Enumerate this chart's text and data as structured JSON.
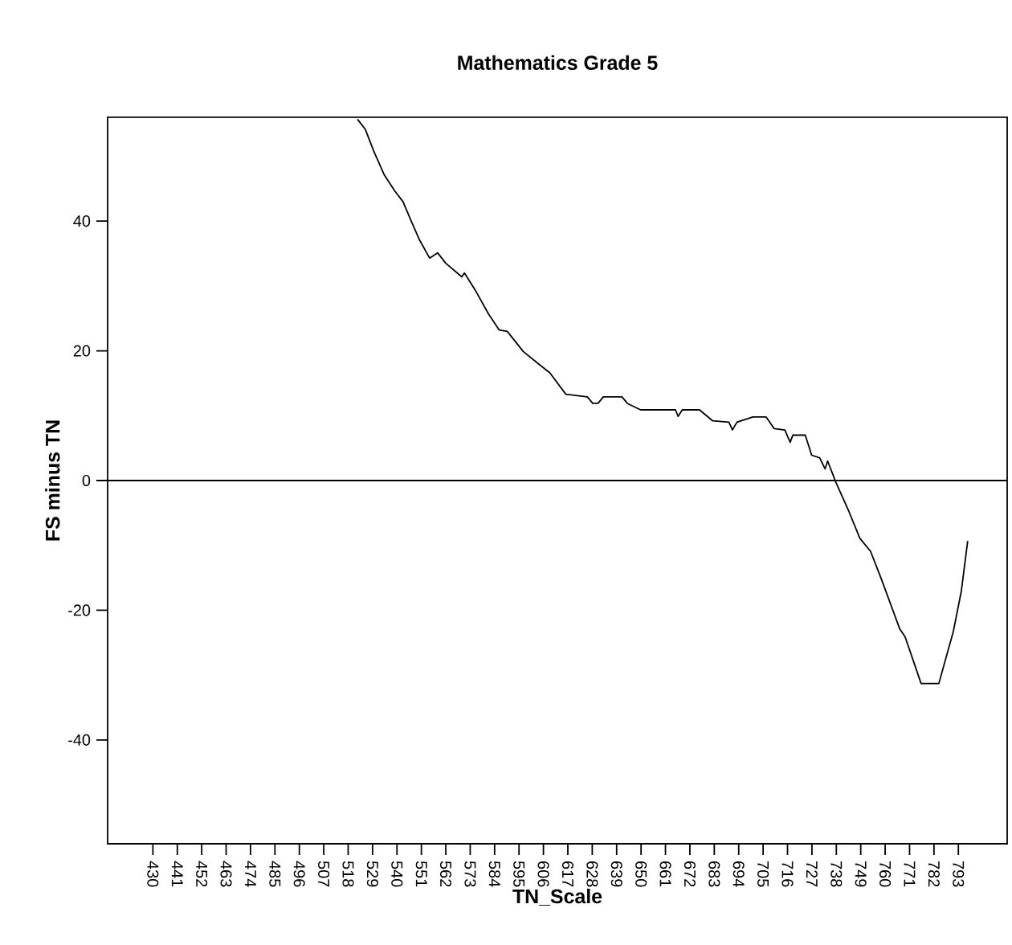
{
  "chart_data": {
    "type": "line",
    "title": "Mathematics Grade 5",
    "xlabel": "TN_Scale",
    "ylabel": "FS minus TN",
    "xlim": [
      409.6,
      815
    ],
    "ylim": [
      -56,
      56
    ],
    "xticks": [
      430,
      441,
      452,
      463,
      474,
      485,
      496,
      507,
      518,
      529,
      540,
      551,
      562,
      573,
      584,
      595,
      606,
      617,
      628,
      639,
      650,
      661,
      672,
      683,
      694,
      705,
      716,
      727,
      738,
      749,
      760,
      771,
      782,
      793
    ],
    "yticks": [
      -40,
      -20,
      0,
      20,
      40
    ],
    "grid": false,
    "marker": "none",
    "line_style": "solid",
    "ref_lines": [
      {
        "axis": "y",
        "value": 0,
        "color": "#000000"
      }
    ],
    "series": [
      {
        "color": "#000000",
        "x": [
          522.2,
          525.8,
          529.5,
          534.3,
          539.1,
          542.7,
          546.3,
          550.0,
          554.7,
          558.3,
          562.0,
          569.2,
          570.4,
          575.2,
          581.2,
          586.1,
          589.7,
          596.9,
          604.1,
          608.9,
          616.1,
          625.8,
          628.2,
          630.6,
          633.0,
          641.4,
          643.8,
          649.8,
          665.5,
          666.7,
          668.6,
          676.3,
          682.3,
          689.6,
          691.2,
          693.2,
          700.4,
          706.4,
          710.0,
          714.8,
          717.2,
          718.4,
          724.0,
          726.9,
          730.5,
          732.9,
          734.1,
          737.7,
          743.7,
          748.6,
          753.4,
          758.2,
          766.6,
          769.0,
          776.2,
          784.2,
          790.7,
          794.3,
          797.2
        ],
        "values": [
          55.7,
          54.1,
          50.8,
          47.1,
          44.6,
          43.0,
          40.1,
          37.2,
          34.3,
          35.1,
          33.5,
          31.4,
          32.0,
          29.4,
          25.7,
          23.2,
          23.0,
          19.9,
          17.9,
          16.6,
          13.3,
          12.9,
          11.9,
          11.9,
          12.9,
          12.9,
          11.9,
          10.9,
          10.9,
          9.9,
          10.9,
          10.9,
          9.2,
          9.0,
          7.8,
          9.0,
          9.8,
          9.8,
          8.0,
          7.8,
          5.9,
          7.0,
          7.0,
          3.9,
          3.5,
          1.8,
          3.0,
          -0.2,
          -4.8,
          -8.9,
          -10.9,
          -15.1,
          -22.9,
          -24.1,
          -31.3,
          -31.3,
          -23.3,
          -17.1,
          -9.3
        ]
      }
    ]
  }
}
